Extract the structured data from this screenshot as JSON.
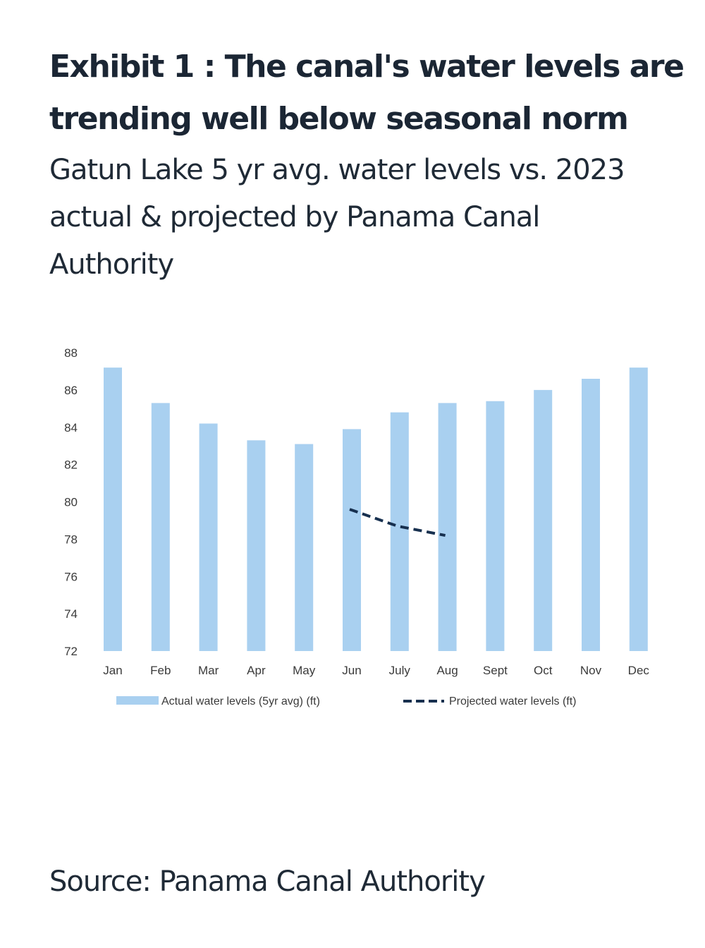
{
  "header": {
    "title": "Exhibit 1 : The canal's water levels are trending well below seasonal norm",
    "subtitle": "Gatun Lake 5 yr avg. water levels vs. 2023 actual & projected by Panama Canal Authority"
  },
  "footer": {
    "source": "Source: Panama Canal Authority"
  },
  "colors": {
    "bar": "#a9d0f0",
    "projected": "#17304f"
  },
  "chart_data": {
    "type": "bar",
    "title": "Gatun Lake 5 yr avg. water levels vs. 2023 actual & projected",
    "xlabel": "",
    "ylabel": "",
    "ylim": [
      72,
      88
    ],
    "yticks": [
      72,
      74,
      76,
      78,
      80,
      82,
      84,
      86,
      88
    ],
    "grid": false,
    "legend_position": "bottom",
    "categories": [
      "Jan",
      "Feb",
      "Mar",
      "Apr",
      "May",
      "Jun",
      "July",
      "Aug",
      "Sept",
      "Oct",
      "Nov",
      "Dec"
    ],
    "series": [
      {
        "name": "Actual water levels (5yr avg) (ft)",
        "type": "bar",
        "values": [
          87.2,
          85.3,
          84.2,
          83.3,
          83.1,
          83.9,
          84.8,
          85.3,
          85.4,
          86.0,
          86.6,
          87.2
        ]
      },
      {
        "name": "Projected water levels (ft)",
        "type": "line",
        "style": "dashed",
        "values": [
          null,
          null,
          null,
          null,
          null,
          79.6,
          78.7,
          78.2,
          null,
          null,
          null,
          null
        ]
      }
    ]
  }
}
